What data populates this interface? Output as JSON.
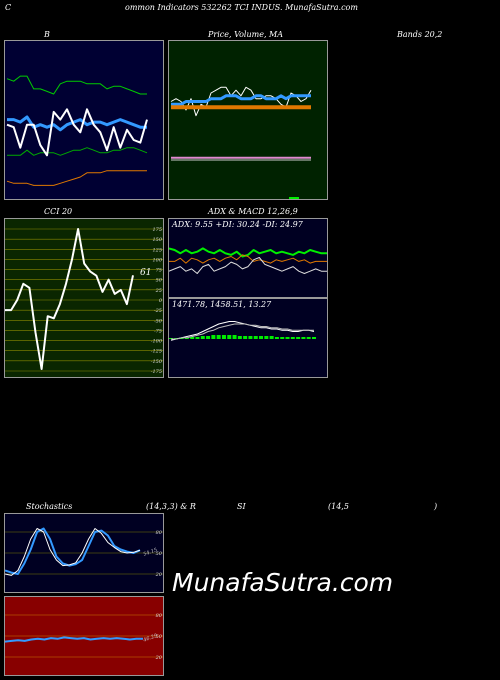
{
  "header": {
    "title_left": "C",
    "title_main": "ommon  Indicators 532262  TCI INDUS. MunafaSutra.com"
  },
  "titles": {
    "bands_a": "B",
    "price_volume": "Price,  Volume, MA",
    "bands_b": "Bands 20,2",
    "cci": "CCI 20",
    "adx_macd": "ADX  & MACD 12,26,9",
    "stoch_a": "Stochastics",
    "stoch_b": "(14,3,3) & R",
    "rsi_a": "SI",
    "rsi_b": "(14,5",
    "rsi_c": ")"
  },
  "readouts": {
    "cci_value": "61",
    "adx_line": "ADX: 9.55  +DI: 30.24  -DI: 24.97",
    "macd_line": "1471.78,  1458.51,  13.27",
    "stoch_value": "54.15",
    "rsi_value": "46.29"
  },
  "watermark": "MunafaSutra.com",
  "colors": {
    "bollinger_bg": "#000033",
    "price_bg": "#002200",
    "cci_bg": "#0a2600",
    "adx_bg": "#000022",
    "stoch_bg": "#000022",
    "rsi_bg": "#880000",
    "bands": "#00cc00",
    "ma_blue": "#3399ff",
    "orange": "#e07800",
    "green_bright": "#00ee00",
    "grid_olive": "#8a8a00"
  },
  "chart_data": [
    {
      "type": "line",
      "title": "Bollinger Bands 20,2",
      "series": [
        {
          "values": [
            24,
            23,
            15,
            24,
            24,
            16,
            12,
            29,
            26,
            30,
            24,
            21,
            30,
            24,
            21,
            14,
            23,
            15,
            22,
            18,
            17,
            26
          ]
        },
        {
          "values": [
            42,
            41,
            43,
            43,
            38,
            38,
            37,
            36,
            40,
            41,
            41,
            41,
            40,
            40,
            40,
            38,
            39,
            39,
            38,
            37,
            36,
            36
          ]
        },
        {
          "values": [
            26,
            26,
            25,
            27,
            23,
            24,
            23,
            24,
            22,
            24,
            25,
            26,
            24,
            25,
            25,
            24,
            25,
            26,
            25,
            24,
            23,
            23
          ]
        },
        {
          "values": [
            12,
            12,
            12,
            14,
            12,
            13,
            13,
            13,
            12,
            13,
            14,
            14,
            15,
            14,
            13,
            13,
            14,
            14,
            15,
            15,
            14,
            13
          ]
        },
        {
          "values": [
            7,
            6,
            6,
            6,
            5,
            5,
            5,
            5,
            6,
            7,
            8,
            9,
            11,
            11,
            11,
            12,
            12,
            12,
            12,
            12,
            12,
            12
          ]
        }
      ]
    },
    {
      "type": "line",
      "title": "Price, Volume, MA",
      "series": [
        {
          "values": [
            21,
            22,
            21,
            18,
            22,
            16,
            20,
            19,
            24,
            25,
            26,
            26,
            23,
            25,
            23,
            26,
            25,
            22,
            22,
            23,
            23,
            22,
            20,
            19,
            24,
            23,
            21,
            22,
            25
          ]
        },
        {
          "values": [
            20,
            20,
            20,
            21,
            21,
            21,
            21,
            21,
            22,
            22,
            22,
            23,
            23,
            23,
            22,
            22,
            22,
            23,
            23,
            22,
            22,
            22,
            23,
            22,
            23,
            23,
            23,
            23,
            23
          ]
        },
        {
          "values": [
            19,
            19,
            19,
            19,
            19,
            19,
            19,
            19,
            19,
            19,
            19,
            19,
            19,
            19,
            19,
            19,
            19,
            19,
            19,
            19,
            19,
            19,
            19,
            19,
            19,
            19,
            19,
            19,
            19
          ]
        },
        {
          "values": [
            10,
            10,
            10,
            10,
            10,
            10,
            10,
            10,
            10,
            10,
            10,
            10,
            10,
            10,
            10,
            10,
            10,
            10,
            10,
            10,
            10,
            10,
            10,
            10,
            10,
            10,
            10,
            10,
            10
          ]
        }
      ]
    },
    {
      "type": "line",
      "title": "CCI 20",
      "ylim": [
        -175,
        175
      ],
      "y_ticks": [
        175,
        150,
        125,
        100,
        75,
        50,
        25,
        0,
        -25,
        -50,
        -75,
        -100,
        -125,
        -150,
        -175
      ],
      "values": [
        -25,
        -25,
        0,
        40,
        30,
        -80,
        -170,
        -40,
        -45,
        -10,
        40,
        100,
        175,
        90,
        70,
        60,
        20,
        50,
        15,
        25,
        -10,
        61
      ]
    },
    {
      "type": "line",
      "title": "ADX",
      "series": [
        {
          "values": [
            33,
            32,
            30,
            32,
            30,
            31,
            33,
            31,
            30,
            32,
            30,
            29,
            31,
            28,
            29,
            32,
            30,
            31,
            32,
            30,
            31,
            30,
            29,
            31,
            30,
            32,
            31,
            30,
            30
          ]
        },
        {
          "values": [
            25,
            25,
            27,
            24,
            27,
            26,
            24,
            26,
            27,
            25,
            27,
            28,
            26,
            29,
            28,
            25,
            26,
            25,
            24,
            26,
            25,
            26,
            27,
            25,
            26,
            24,
            25,
            25,
            25
          ]
        },
        {
          "values": [
            10,
            11,
            12,
            10,
            11,
            9,
            12,
            13,
            10,
            11,
            12,
            14,
            13,
            11,
            12,
            15,
            16,
            13,
            12,
            11,
            10,
            11,
            12,
            10,
            9,
            10,
            11,
            10,
            10
          ]
        }
      ]
    },
    {
      "type": "line",
      "title": "MACD 12,26,9",
      "series": [
        {
          "values": [
            -5,
            -4,
            -3,
            -2,
            -1,
            0,
            2,
            4,
            6,
            8,
            9,
            10,
            10,
            9,
            8,
            7,
            6,
            5,
            5,
            4,
            4,
            3,
            3,
            2,
            2,
            3,
            3,
            2
          ]
        },
        {
          "values": [
            -4,
            -4,
            -3,
            -3,
            -2,
            -1,
            0,
            2,
            3,
            5,
            6,
            7,
            8,
            8,
            8,
            7,
            7,
            6,
            6,
            5,
            5,
            4,
            4,
            3,
            3,
            3,
            3,
            3
          ]
        }
      ],
      "histogram": [
        1,
        1,
        1,
        1,
        2,
        2,
        3,
        3,
        4,
        4,
        4,
        4,
        4,
        3,
        3,
        3,
        3,
        3,
        3,
        3,
        2,
        2,
        2,
        2,
        2,
        2,
        2,
        2
      ]
    },
    {
      "type": "line",
      "title": "Stochastics (14,3,3)",
      "y_ticks": [
        80,
        50,
        20
      ],
      "ylim": [
        0,
        100
      ],
      "series": [
        {
          "values": [
            25,
            22,
            20,
            35,
            55,
            80,
            85,
            70,
            45,
            35,
            32,
            34,
            40,
            60,
            80,
            82,
            75,
            60,
            55,
            52,
            50,
            54
          ]
        },
        {
          "values": [
            20,
            18,
            25,
            45,
            70,
            85,
            80,
            55,
            40,
            32,
            33,
            36,
            50,
            70,
            85,
            78,
            65,
            58,
            52,
            50,
            51,
            54
          ]
        }
      ]
    },
    {
      "type": "line",
      "title": "RSI (14,5)",
      "y_ticks": [
        80,
        50,
        20
      ],
      "ylim": [
        0,
        100
      ],
      "values": [
        42,
        43,
        44,
        43,
        45,
        46,
        45,
        47,
        46,
        48,
        47,
        46,
        47,
        45,
        46,
        47,
        46,
        47,
        46,
        45,
        46,
        46
      ]
    }
  ]
}
